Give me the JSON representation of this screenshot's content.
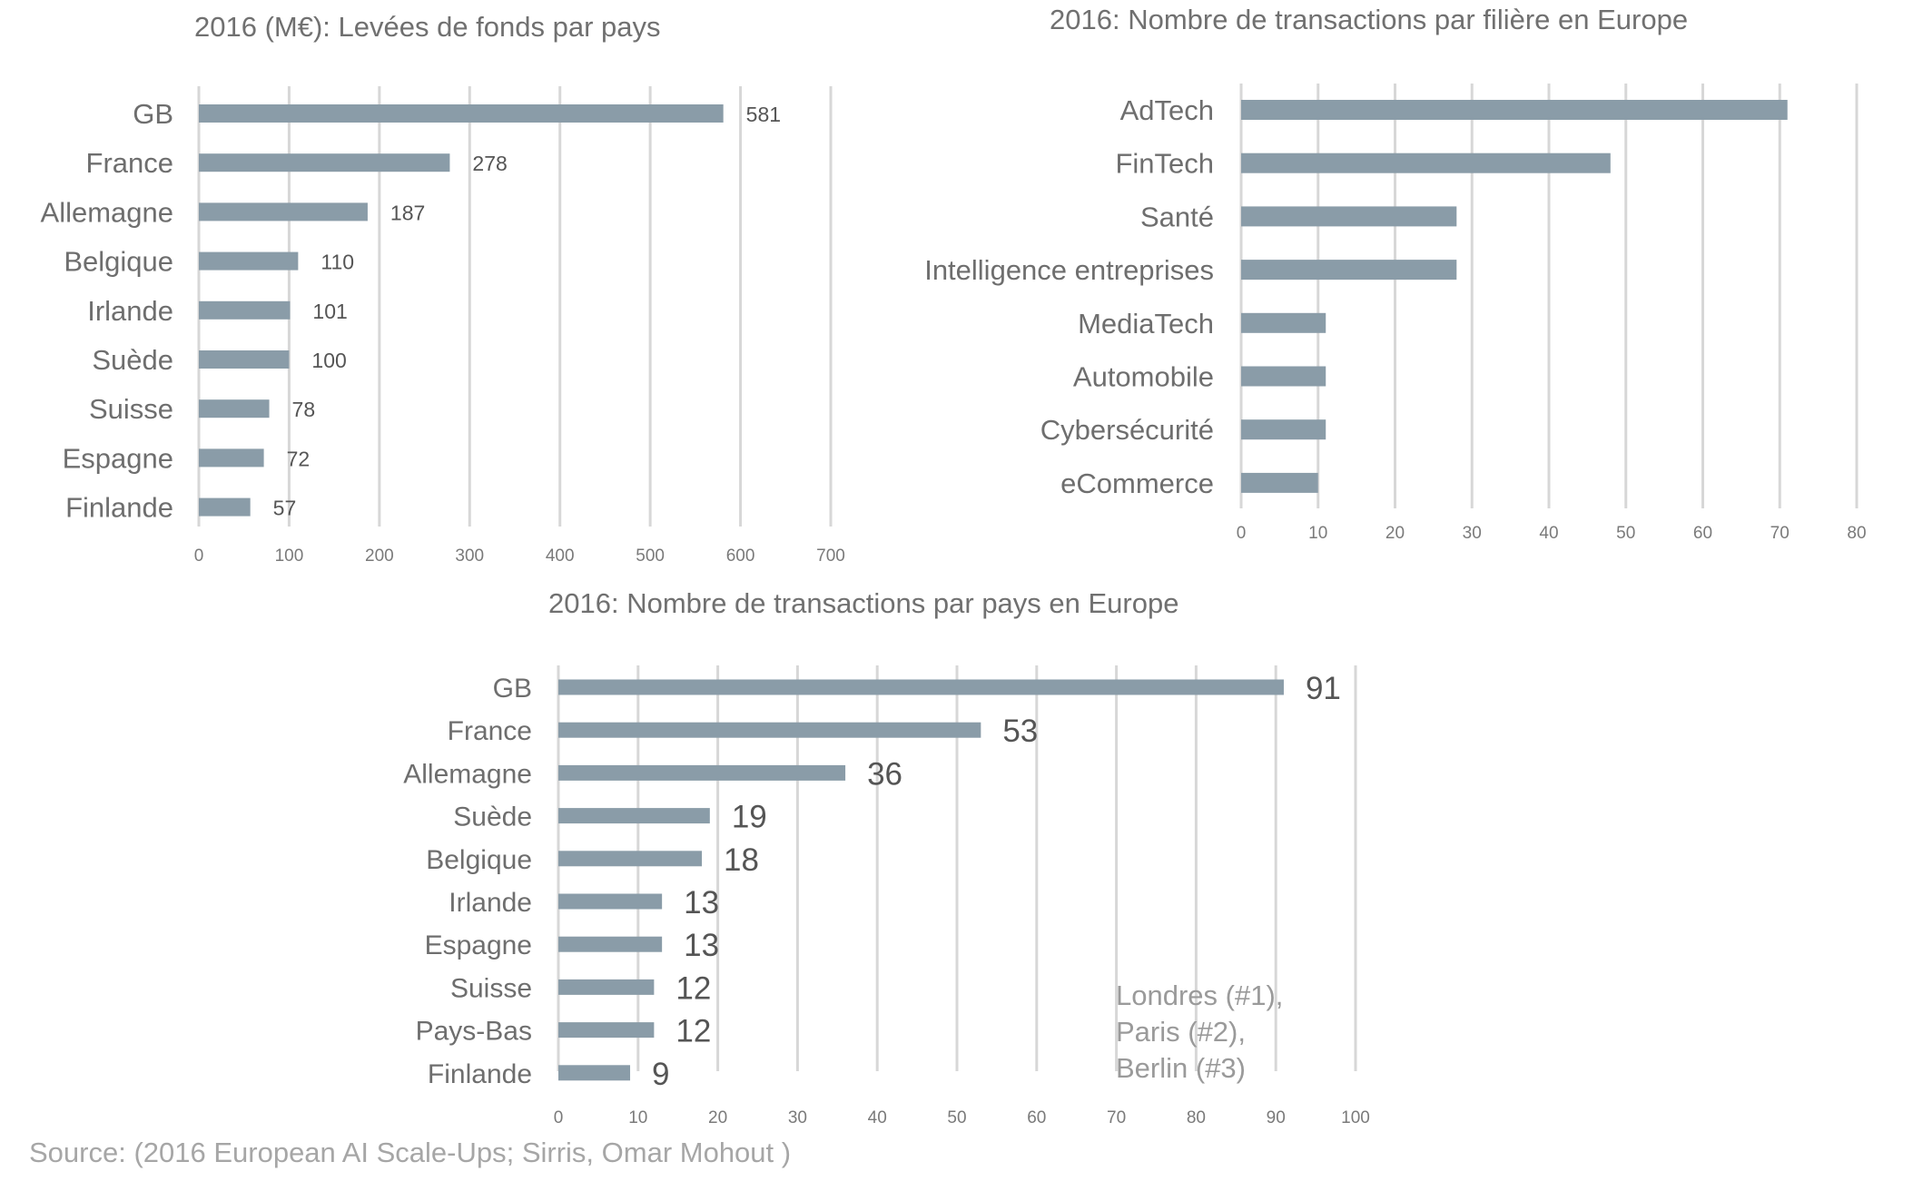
{
  "chart_data": [
    {
      "type": "bar",
      "orientation": "horizontal",
      "title": "2016 (M€): Levées de fonds par pays",
      "categories": [
        "GB",
        "France",
        "Allemagne",
        "Belgique",
        "Irlande",
        "Suède",
        "Suisse",
        "Espagne",
        "Finlande"
      ],
      "values": [
        581,
        278,
        187,
        110,
        101,
        100,
        78,
        72,
        57
      ],
      "data_labels": [
        "581",
        "278",
        "187",
        "110",
        "101",
        "100",
        "78",
        "72",
        "57"
      ],
      "xlim": [
        0,
        700
      ],
      "ticks": [
        "0",
        "100",
        "200",
        "300",
        "400",
        "500",
        "600",
        "700"
      ],
      "grid": true,
      "bar_color": "#8a9ca8"
    },
    {
      "type": "bar",
      "orientation": "horizontal",
      "title": "2016: Nombre de transactions par filière en Europe",
      "categories": [
        "AdTech",
        "FinTech",
        "Santé",
        "Intelligence entreprises",
        "MediaTech",
        "Automobile",
        "Cybersécurité",
        "eCommerce"
      ],
      "values": [
        71,
        48,
        28,
        28,
        11,
        11,
        11,
        10
      ],
      "xlim": [
        0,
        80
      ],
      "ticks": [
        "0",
        "10",
        "20",
        "30",
        "40",
        "50",
        "60",
        "70",
        "80"
      ],
      "grid": true,
      "bar_color": "#8a9ca8"
    },
    {
      "type": "bar",
      "orientation": "horizontal",
      "title": "2016: Nombre de transactions par pays en Europe",
      "categories": [
        "GB",
        "France",
        "Allemagne",
        "Suède",
        "Belgique",
        "Irlande",
        "Espagne",
        "Suisse",
        "Pays-Bas",
        "Finlande"
      ],
      "values": [
        91,
        53,
        36,
        19,
        18,
        13,
        13,
        12,
        12,
        9
      ],
      "data_labels": [
        "91",
        "53",
        "36",
        "19",
        "18",
        "13",
        "13",
        "12",
        "12",
        "9"
      ],
      "xlim": [
        0,
        100
      ],
      "ticks": [
        "0",
        "10",
        "20",
        "30",
        "40",
        "50",
        "60",
        "70",
        "80",
        "90",
        "100"
      ],
      "grid": true,
      "bar_color": "#8a9ca8",
      "annotation": [
        "Londres (#1),",
        "Paris (#2),",
        "Berlin (#3)"
      ]
    }
  ],
  "source": "Source: (2016 European AI Scale-Ups; Sirris, Omar Mohout )"
}
